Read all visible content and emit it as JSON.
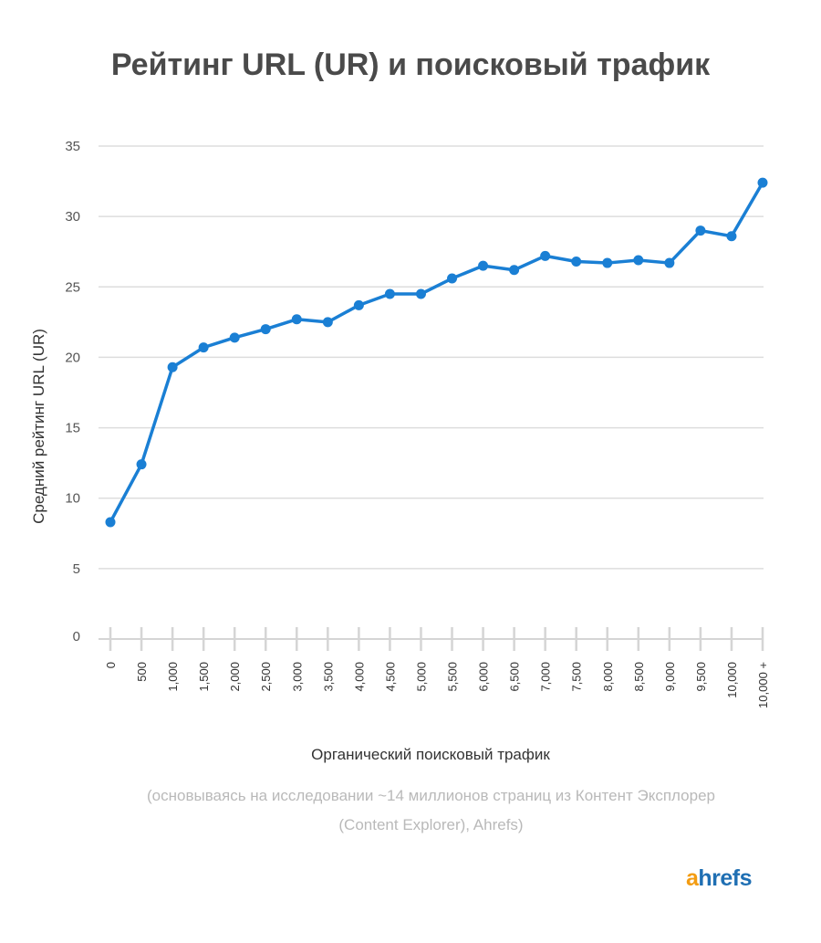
{
  "chart_data": {
    "type": "line",
    "title": "Рейтинг URL (UR) и поисковый трафик",
    "xlabel": "Органический поисковый трафик",
    "ylabel": "Средний рейтинг URL (UR)",
    "categories": [
      "0",
      "500",
      "1,000",
      "1,500",
      "2,000",
      "2,500",
      "3,000",
      "3,500",
      "4,000",
      "4,500",
      "5,000",
      "5,500",
      "6,000",
      "6,500",
      "7,000",
      "7,500",
      "8,000",
      "8,500",
      "9,000",
      "9,500",
      "10,000",
      "10,000 +"
    ],
    "series": [
      {
        "values": [
          8.3,
          12.4,
          19.3,
          20.7,
          21.4,
          22.0,
          22.7,
          22.5,
          23.7,
          24.5,
          24.5,
          25.6,
          26.5,
          26.2,
          27.2,
          26.8,
          26.7,
          26.9,
          26.7,
          29.0,
          28.6,
          32.4
        ]
      }
    ],
    "ylim": [
      0,
      35
    ],
    "yticks": [
      "0",
      "5",
      "10",
      "15",
      "20",
      "25",
      "30",
      "35"
    ],
    "grid": true,
    "color": "#1a7fd4"
  },
  "footnote": {
    "line1": "(основываясь на исследовании ~14 миллионов страниц из Контент Эксплорер",
    "line2": "(Content Explorer), Ahrefs)"
  },
  "logo": {
    "first": "a",
    "rest": "hrefs"
  }
}
